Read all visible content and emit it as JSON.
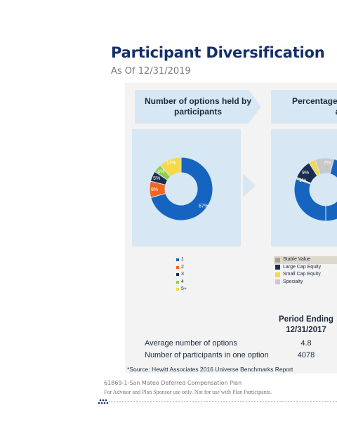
{
  "header": {
    "title": "Participant Diversification",
    "subtitle": "As Of 12/31/2019"
  },
  "panels": {
    "left_title": "Number of options held by participants",
    "right_title": "Percentage of pa option by asset"
  },
  "chart_data": [
    {
      "type": "pie",
      "categories": [
        "1",
        "2",
        "3",
        "4",
        "5+"
      ],
      "values": [
        67,
        8,
        5,
        4,
        11
      ],
      "labels": [
        "67%",
        "8%",
        "5%",
        "4%",
        "11%"
      ],
      "colors": [
        "#1565c0",
        "#f26522",
        "#1a2e52",
        "#8fcf4c",
        "#f5d94a"
      ],
      "legend_position": "bottom"
    },
    {
      "type": "pie",
      "categories": [
        "Stable Value",
        "Large Cap Equity",
        "Small Cap Equity",
        "Specialty"
      ],
      "visible_labels": [
        "9%",
        "1%",
        "7%"
      ],
      "colors": [
        "#1565c0",
        "#1a2e52",
        "#f5d94a",
        "#c9c9c9"
      ],
      "legend_position": "bottom"
    }
  ],
  "stats": {
    "period_heading": "Period Ending",
    "period_date": "12/31/2017",
    "rows": [
      {
        "label": "Average number of options",
        "value": "4.8"
      },
      {
        "label": "Number of participants in one option",
        "value": "4078"
      }
    ]
  },
  "source": "*Source: Hewitt Associates 2016 Universe Benchmarks Report",
  "footer": {
    "plan": "61869-1-San Mateo Deferred Compensation Plan",
    "disclaimer": "For Advisor and Plan Sponsor use only. Not for use with Plan Participants."
  }
}
